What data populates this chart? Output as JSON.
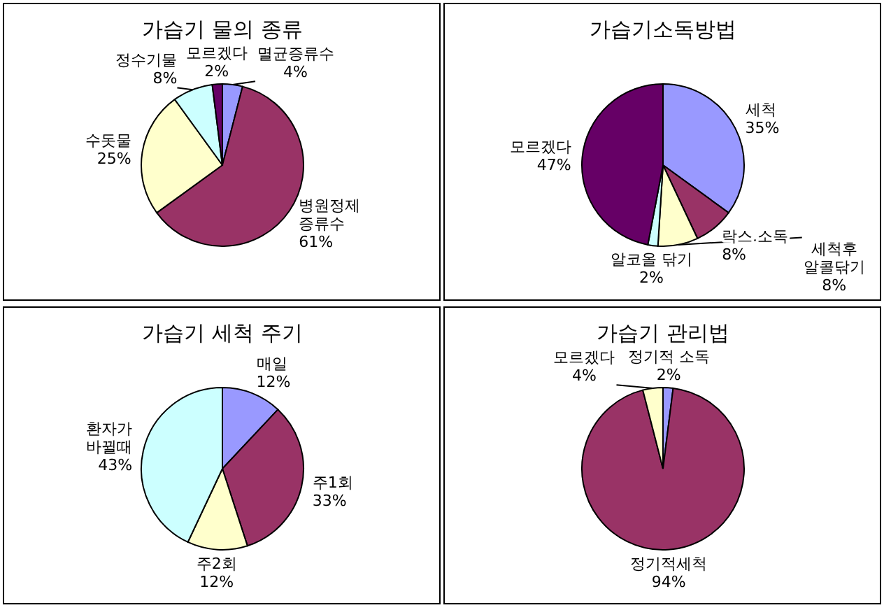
{
  "chart_data": [
    {
      "type": "pie",
      "title": "가습기 물의 종류",
      "categories": [
        "멸균증류수",
        "병원정제 증류수",
        "수돗물",
        "정수기물",
        "모르겠다"
      ],
      "values": [
        4,
        61,
        25,
        8,
        2
      ],
      "value_labels": [
        "4%",
        "61%",
        "25%",
        "8%",
        "2%"
      ],
      "colors": [
        "#9999ff",
        "#993366",
        "#ffffcc",
        "#ccffff",
        "#660066"
      ]
    },
    {
      "type": "pie",
      "title": "가습기소독방법",
      "categories": [
        "세척",
        "락스 소독",
        "세척후 알콜닦기",
        "알코올 닦기",
        "모르겠다"
      ],
      "values": [
        35,
        8,
        8,
        2,
        47
      ],
      "value_labels": [
        "35%",
        "8%",
        "8%",
        "2%",
        "47%"
      ],
      "colors": [
        "#9999ff",
        "#993366",
        "#ffffcc",
        "#ccffff",
        "#660066"
      ]
    },
    {
      "type": "pie",
      "title": "가습기 세척 주기",
      "categories": [
        "매일",
        "주1회",
        "주2회",
        "환자가 바뀔때"
      ],
      "values": [
        12,
        33,
        12,
        43
      ],
      "value_labels": [
        "12%",
        "33%",
        "12%",
        "43%"
      ],
      "colors": [
        "#9999ff",
        "#993366",
        "#ffffcc",
        "#ccffff"
      ]
    },
    {
      "type": "pie",
      "title": "가습기 관리법",
      "categories": [
        "정기적 소독",
        "정기적세척",
        "모르겠다"
      ],
      "values": [
        2,
        94,
        4
      ],
      "value_labels": [
        "2%",
        "94%",
        "4%"
      ],
      "colors": [
        "#9999ff",
        "#993366",
        "#ffffcc"
      ]
    }
  ]
}
